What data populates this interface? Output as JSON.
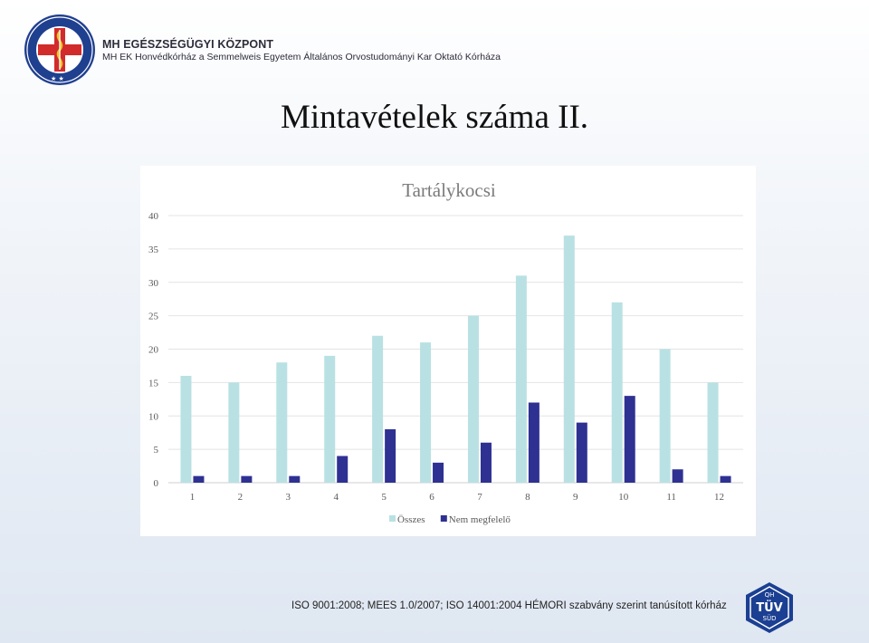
{
  "header": {
    "org_name": "MH EGÉSZSÉGÜGYI KÖZPONT",
    "org_subtitle": "MH EK Honvédkórház a Semmelweis Egyetem Általános Orvostudományi Kar Oktató Kórháza",
    "logo_ring_text": "MH EGÉSZSÉGÜGYI KÖZPONT"
  },
  "page_title": "Mintavételek száma II.",
  "chart_data": {
    "type": "bar",
    "title": "Tartálykocsi",
    "categories": [
      "1",
      "2",
      "3",
      "4",
      "5",
      "6",
      "7",
      "8",
      "9",
      "10",
      "11",
      "12"
    ],
    "series": [
      {
        "name": "Összes",
        "color": "#b9e1e3",
        "values": [
          16,
          15,
          18,
          19,
          22,
          21,
          25,
          31,
          37,
          27,
          20,
          15
        ]
      },
      {
        "name": "Nem megfelelő",
        "color": "#2e3192",
        "values": [
          1,
          1,
          1,
          4,
          8,
          3,
          6,
          12,
          9,
          13,
          2,
          1
        ]
      }
    ],
    "ylim": [
      0,
      40
    ],
    "yticks": [
      0,
      5,
      10,
      15,
      20,
      25,
      30,
      35,
      40
    ],
    "grid": true,
    "legend_position": "bottom",
    "xlabel": "",
    "ylabel": ""
  },
  "footer": {
    "text": "ISO 9001:2008; MEES 1.0/2007; ISO 14001:2004 HÉMORI szabvány szerint tanúsított kórház",
    "badge_top": "QH",
    "badge_mid": "TÜV",
    "badge_bottom": "SÜD"
  }
}
